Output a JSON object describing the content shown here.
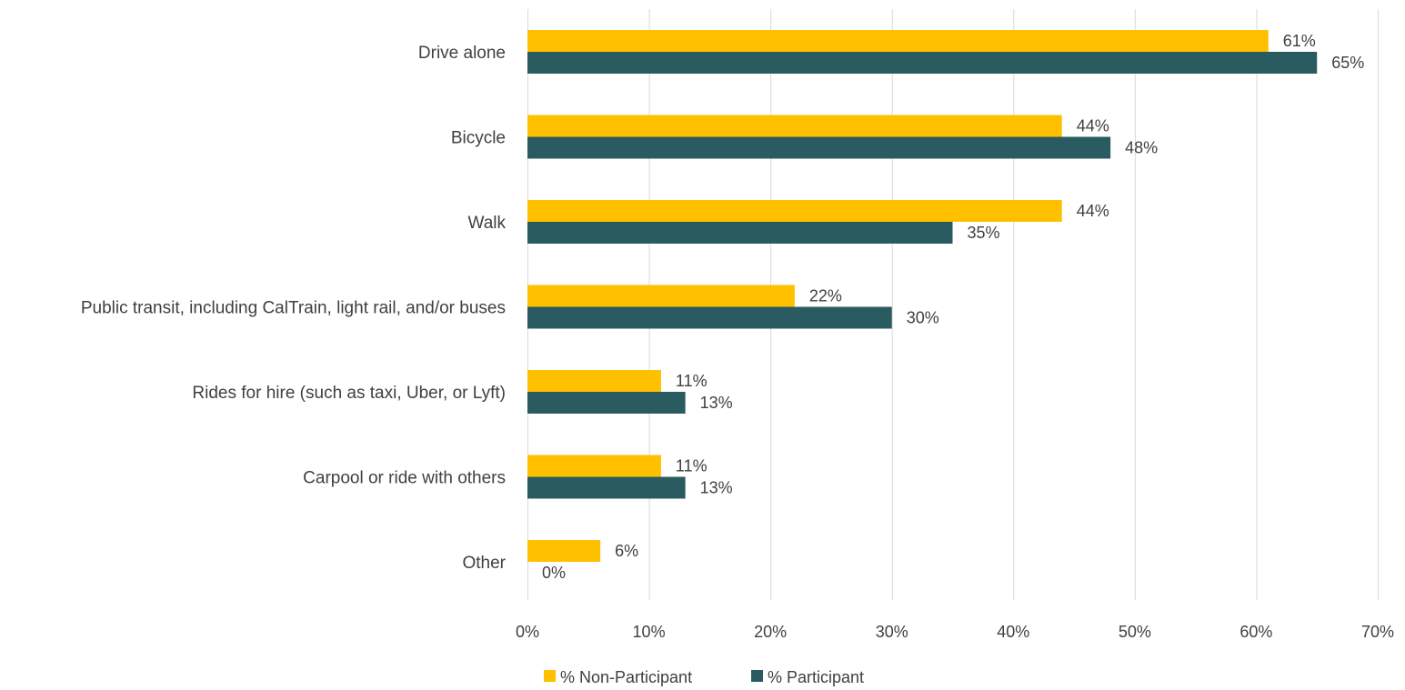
{
  "chart_data": {
    "type": "bar",
    "orientation": "horizontal",
    "categories": [
      "Drive alone",
      "Bicycle",
      "Walk",
      "Public transit, including CalTrain, light rail, and/or buses",
      "Rides for hire (such as taxi, Uber, or Lyft)",
      "Carpool or ride with others",
      "Other"
    ],
    "series": [
      {
        "name": "% Non-Participant",
        "color": "#FFC000",
        "values": [
          61,
          44,
          44,
          22,
          11,
          11,
          6
        ],
        "labels": [
          "61%",
          "44%",
          "44%",
          "22%",
          "11%",
          "11%",
          "6%"
        ]
      },
      {
        "name": "% Participant",
        "color": "#2A5B60",
        "values": [
          65,
          48,
          35,
          30,
          13,
          13,
          0
        ],
        "labels": [
          "65%",
          "48%",
          "35%",
          "30%",
          "13%",
          "13%",
          "0%"
        ]
      }
    ],
    "xlim": [
      0,
      70
    ],
    "xticks": [
      0,
      10,
      20,
      30,
      40,
      50,
      60,
      70
    ],
    "xtick_labels": [
      "0%",
      "10%",
      "20%",
      "30%",
      "40%",
      "50%",
      "60%",
      "70%"
    ],
    "grid": "vertical",
    "legend": "bottom-center",
    "title": "",
    "xlabel": "",
    "ylabel": ""
  }
}
